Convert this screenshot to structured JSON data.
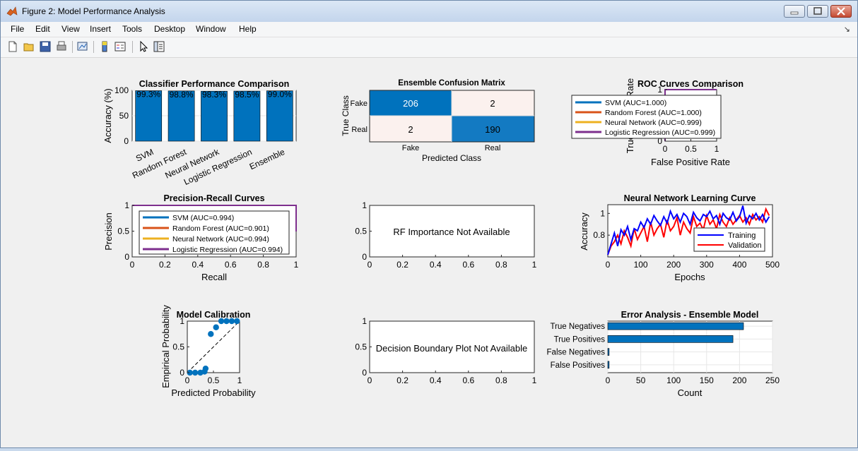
{
  "window": {
    "title": "Figure 2: Model Performance Analysis",
    "min_icon": "minimize-icon",
    "max_icon": "maximize-icon",
    "close_icon": "close-icon"
  },
  "menu": [
    "File",
    "Edit",
    "View",
    "Insert",
    "Tools",
    "Desktop",
    "Window",
    "Help"
  ],
  "toolbar_icons": [
    "new-figure-icon",
    "open-file-icon",
    "save-icon",
    "print-icon",
    "link-plot-icon",
    "insert-colorbar-icon",
    "insert-legend-icon",
    "pointer-icon",
    "property-editor-icon"
  ],
  "colors": {
    "svm": "#0072BD",
    "rf": "#D95319",
    "nn": "#EDB120",
    "lr": "#7E2F8E",
    "bar": "#0072BD",
    "train": "#0000FF",
    "val": "#FF0000"
  },
  "charts": {
    "accuracy": {
      "title": "Classifier Performance Comparison",
      "ylabel": "Accuracy (%)",
      "categories": [
        "SVM",
        "Random Forest",
        "Neural Network",
        "Logistic Regression",
        "Ensemble"
      ],
      "values": [
        99.3,
        98.8,
        98.3,
        98.5,
        99.0
      ],
      "value_labels": [
        "99.3%",
        "98.8%",
        "98.3%",
        "98.5%",
        "99.0%"
      ],
      "yticks": [
        "0",
        "50",
        "100"
      ],
      "ylim": [
        0,
        100
      ]
    },
    "confusion": {
      "title": "Ensemble Confusion Matrix",
      "xlabel": "Predicted Class",
      "ylabel": "True Class",
      "x_labels": [
        "Fake",
        "Real"
      ],
      "y_labels": [
        "Fake",
        "Real"
      ],
      "cells": [
        "206",
        "2",
        "2",
        "190"
      ]
    },
    "roc": {
      "title": "ROC Curves Comparison",
      "xlabel": "False Positive Rate",
      "ylabel": "True Positive Rate",
      "xticks": [
        "0",
        "0.5",
        "1"
      ],
      "yticks": [
        "0",
        "0.5",
        "1"
      ],
      "legend": [
        "SVM (AUC=1.000)",
        "Random Forest (AUC=1.000)",
        "Neural Network (AUC=0.999)",
        "Logistic Regression (AUC=0.999)"
      ]
    },
    "pr": {
      "title": "Precision-Recall Curves",
      "xlabel": "Recall",
      "ylabel": "Precision",
      "xticks": [
        "0",
        "0.2",
        "0.4",
        "0.6",
        "0.8",
        "1"
      ],
      "yticks": [
        "0",
        "0.5",
        "1"
      ],
      "legend": [
        "SVM (AUC=0.994)",
        "Random Forest (AUC=0.901)",
        "Neural Network (AUC=0.994)",
        "Logistic Regression (AUC=0.994)"
      ]
    },
    "rf": {
      "message": "RF Importance Not Available",
      "xticks": [
        "0",
        "0.2",
        "0.4",
        "0.6",
        "0.8",
        "1"
      ],
      "yticks": [
        "0",
        "0.5",
        "1"
      ]
    },
    "learning": {
      "title": "Neural Network Learning Curve",
      "xlabel": "Epochs",
      "ylabel": "Accuracy",
      "xticks": [
        "0",
        "100",
        "200",
        "300",
        "400",
        "500"
      ],
      "yticks": [
        "0.8",
        "1"
      ],
      "legend": [
        "Training",
        "Validation"
      ],
      "x": [
        0,
        10,
        20,
        30,
        40,
        50,
        60,
        70,
        80,
        90,
        100,
        110,
        120,
        130,
        140,
        150,
        160,
        170,
        180,
        190,
        200,
        210,
        220,
        230,
        240,
        250,
        260,
        270,
        280,
        290,
        300,
        310,
        320,
        330,
        340,
        350,
        360,
        370,
        380,
        390,
        400,
        410,
        420,
        430,
        440,
        450,
        460,
        470,
        480,
        490
      ],
      "train": [
        0.62,
        0.72,
        0.82,
        0.7,
        0.85,
        0.8,
        0.88,
        0.76,
        0.86,
        0.84,
        0.92,
        0.87,
        0.95,
        0.9,
        0.98,
        0.93,
        0.89,
        0.97,
        0.91,
        1.02,
        0.95,
        0.99,
        0.92,
        1.0,
        0.97,
        0.9,
        1.01,
        0.96,
        0.93,
        0.99,
        0.97,
        1.02,
        0.95,
        0.98,
        0.9,
        1.0,
        0.96,
        0.94,
        1.01,
        0.93,
        0.97,
        1.07,
        0.91,
        0.98,
        0.95,
        1.0,
        0.94,
        0.99,
        0.92,
        0.97
      ],
      "val": [
        0.62,
        0.7,
        0.74,
        0.8,
        0.72,
        0.84,
        0.78,
        0.7,
        0.86,
        0.76,
        0.82,
        0.88,
        0.74,
        0.92,
        0.8,
        0.86,
        0.9,
        0.78,
        0.94,
        0.84,
        0.88,
        0.96,
        0.8,
        0.92,
        0.86,
        0.82,
        0.97,
        0.88,
        0.91,
        0.85,
        0.98,
        0.9,
        0.94,
        0.86,
        0.99,
        0.92,
        0.88,
        0.96,
        0.9,
        0.94,
        0.98,
        0.92,
        0.96,
        0.9,
        0.99,
        0.94,
        0.97,
        0.92,
        1.04,
        0.98
      ]
    },
    "calibration": {
      "title": "Model Calibration",
      "xlabel": "Predicted Probability",
      "ylabel": "Empirical Probability",
      "xticks": [
        "0",
        "0.5",
        "1"
      ],
      "yticks": [
        "0",
        "0.5",
        "1"
      ],
      "points": [
        [
          0.05,
          0.0
        ],
        [
          0.15,
          0.0
        ],
        [
          0.25,
          0.0
        ],
        [
          0.33,
          0.02
        ],
        [
          0.35,
          0.08
        ],
        [
          0.45,
          0.75
        ],
        [
          0.55,
          0.88
        ],
        [
          0.65,
          1.0
        ],
        [
          0.75,
          1.0
        ],
        [
          0.85,
          1.0
        ],
        [
          0.95,
          1.0
        ]
      ]
    },
    "decision": {
      "message": "Decision Boundary Plot Not Available",
      "xticks": [
        "0",
        "0.2",
        "0.4",
        "0.6",
        "0.8",
        "1"
      ],
      "yticks": [
        "0",
        "0.5",
        "1"
      ]
    },
    "errors": {
      "title": "Error Analysis - Ensemble Model",
      "xlabel": "Count",
      "categories": [
        "True Negatives",
        "True Positives",
        "False Negatives",
        "False Positives"
      ],
      "values": [
        206,
        190,
        2,
        2
      ],
      "xticks": [
        "0",
        "50",
        "100",
        "150",
        "200",
        "250"
      ],
      "xlim": [
        0,
        250
      ]
    }
  },
  "chart_data": [
    {
      "type": "bar",
      "title": "Classifier Performance Comparison",
      "categories": [
        "SVM",
        "Random Forest",
        "Neural Network",
        "Logistic Regression",
        "Ensemble"
      ],
      "values": [
        99.3,
        98.8,
        98.3,
        98.5,
        99.0
      ],
      "ylabel": "Accuracy (%)",
      "ylim": [
        0,
        100
      ]
    },
    {
      "type": "heatmap",
      "title": "Ensemble Confusion Matrix",
      "x": [
        "Fake",
        "Real"
      ],
      "y": [
        "Fake",
        "Real"
      ],
      "values": [
        [
          206,
          2
        ],
        [
          2,
          190
        ]
      ],
      "xlabel": "Predicted Class",
      "ylabel": "True Class"
    },
    {
      "type": "line",
      "title": "ROC Curves Comparison",
      "xlabel": "False Positive Rate",
      "ylabel": "True Positive Rate",
      "xlim": [
        0,
        1
      ],
      "ylim": [
        0,
        1
      ]
    },
    {
      "type": "line",
      "title": "Precision-Recall Curves",
      "xlabel": "Recall",
      "ylabel": "Precision",
      "xlim": [
        0,
        1
      ],
      "ylim": [
        0,
        1
      ]
    },
    {
      "type": "line",
      "title": "Neural Network Learning Curve",
      "xlabel": "Epochs",
      "ylabel": "Accuracy",
      "xlim": [
        0,
        500
      ],
      "ylim": [
        0.7,
        1.1
      ]
    },
    {
      "type": "scatter",
      "title": "Model Calibration",
      "xlabel": "Predicted Probability",
      "ylabel": "Empirical Probability",
      "xlim": [
        0,
        1
      ],
      "ylim": [
        0,
        1
      ]
    },
    {
      "type": "bar",
      "title": "Error Analysis - Ensemble Model",
      "categories": [
        "True Negatives",
        "True Positives",
        "False Negatives",
        "False Positives"
      ],
      "values": [
        206,
        190,
        2,
        2
      ],
      "xlabel": "Count",
      "xlim": [
        0,
        250
      ]
    }
  ]
}
